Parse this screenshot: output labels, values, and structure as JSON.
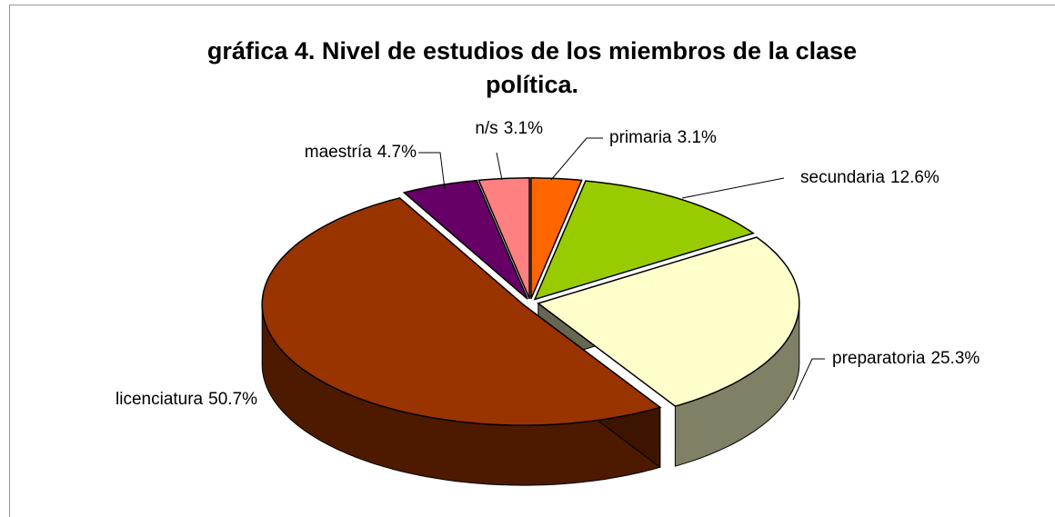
{
  "chart_data": {
    "type": "pie",
    "title": "gráfica 4. Nivel de estudios de los miembros de la clase política.",
    "categories": [
      "primaria",
      "secundaria",
      "preparatoria",
      "licenciatura",
      "maestría",
      "n/s"
    ],
    "values": [
      3.1,
      12.6,
      25.3,
      50.7,
      4.7,
      3.1
    ],
    "value_labels": [
      "3.1%",
      "12.6%",
      "25.3%",
      "50.7%",
      "4.7%",
      "3.1%"
    ],
    "colors": [
      "#ff6600",
      "#99cc00",
      "#ffffcc",
      "#993300",
      "#660066",
      "#ff8080"
    ]
  }
}
